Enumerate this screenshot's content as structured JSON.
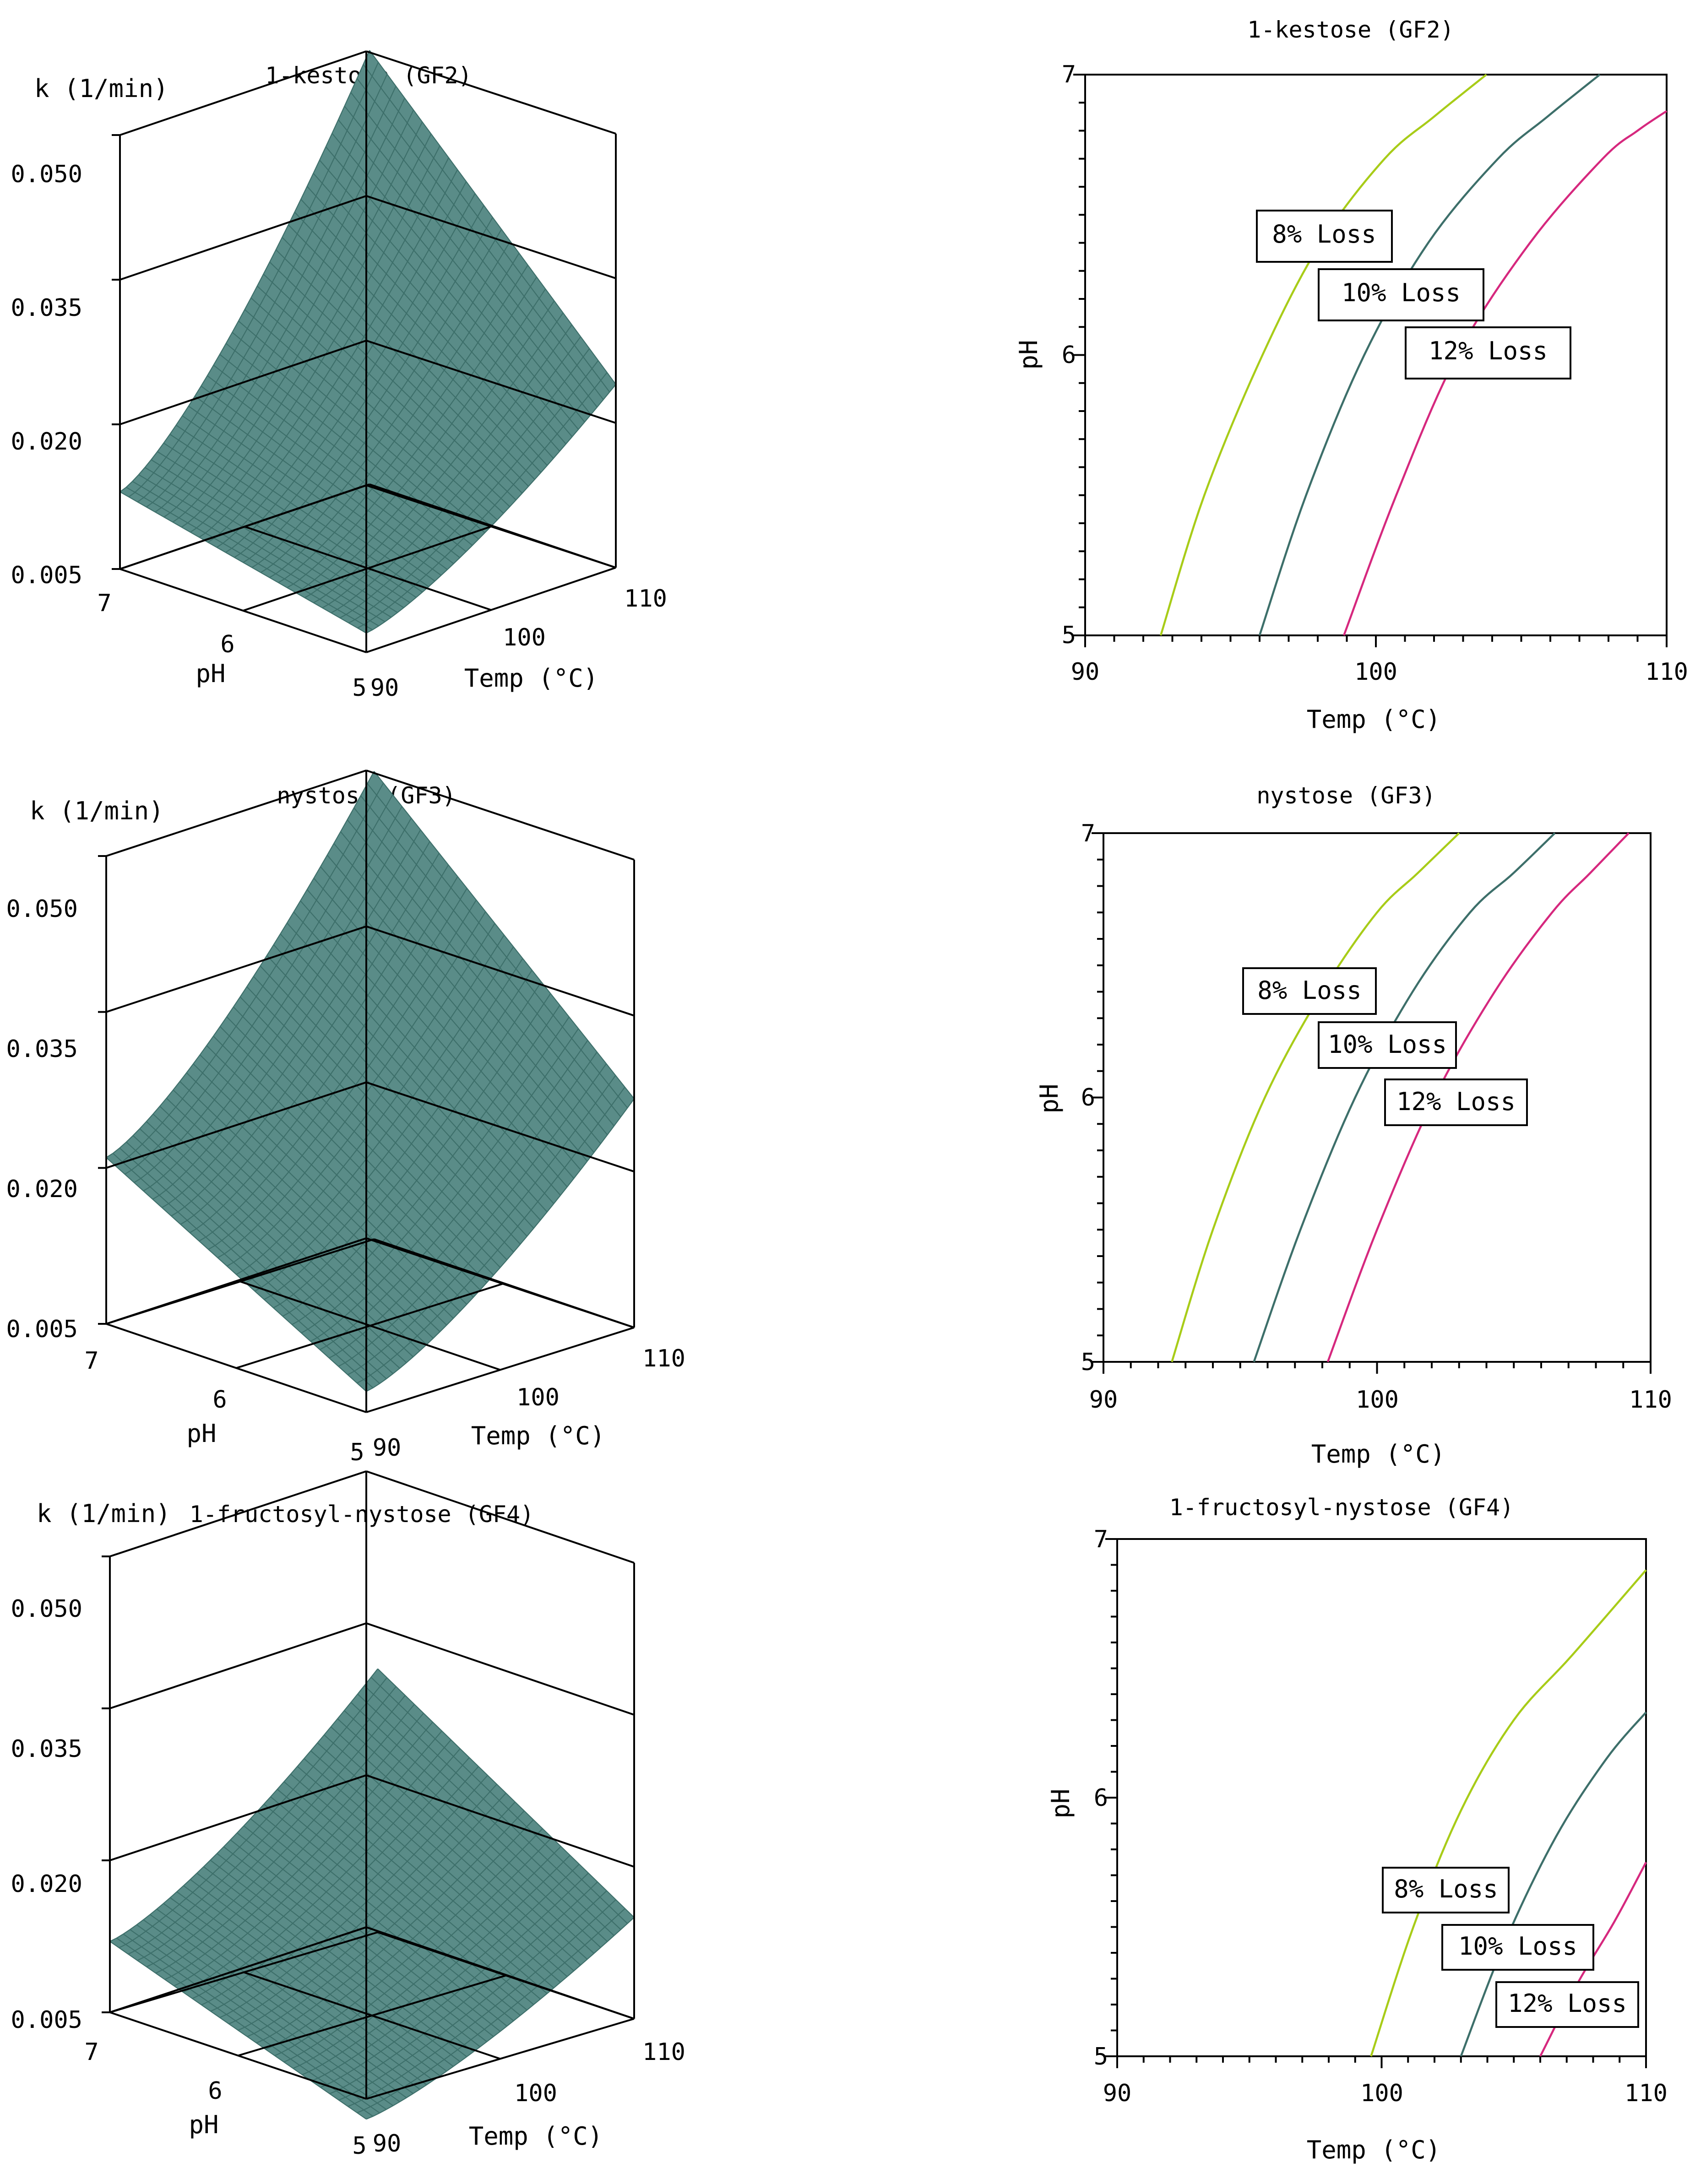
{
  "chart_data": [
    {
      "type": "surface3d",
      "title": "1-kestose (GF2)",
      "zlabel": "k (1/min)",
      "xlabel": "Temp (°C)",
      "ylabel": "pH",
      "z_ticks": [
        "0.005",
        "0.020",
        "0.035",
        "0.050"
      ],
      "temp_ticks": [
        "90",
        "100",
        "110"
      ],
      "ph_ticks": [
        "7",
        "6",
        "5"
      ],
      "zlim": [
        0.005,
        0.05
      ],
      "xlim": [
        90,
        110
      ],
      "ylim": [
        5,
        7
      ],
      "corners": {
        "t90_ph5": 0.007,
        "t90_ph7": 0.013,
        "t110_ph5": 0.024,
        "t110_ph7": 0.05
      },
      "series_color": "#3d6f6a"
    },
    {
      "type": "contour",
      "title": "1-kestose (GF2)",
      "xlabel": "Temp (°C)",
      "ylabel": "pH",
      "x_ticks": [
        "90",
        "100",
        "110"
      ],
      "y_ticks": [
        "5",
        "6",
        "7"
      ],
      "xlim": [
        90,
        110
      ],
      "ylim": [
        5,
        7
      ],
      "series": [
        {
          "name": "8% Loss",
          "color": "#a8cc18",
          "x": [
            92.6,
            94.1,
            96.1,
            98.1,
            100.3,
            102.0,
            103.8
          ],
          "y": [
            5.0,
            5.5,
            6.0,
            6.4,
            6.7,
            6.85,
            7.0
          ]
        },
        {
          "name": "10% Loss",
          "color": "#3d6f6a",
          "x": [
            96.0,
            97.6,
            99.6,
            101.8,
            104.2,
            105.9,
            107.7
          ],
          "y": [
            5.0,
            5.5,
            6.0,
            6.4,
            6.7,
            6.85,
            7.0
          ]
        },
        {
          "name": "12% Loss",
          "color": "#d6287e",
          "x": [
            98.9,
            100.7,
            102.8,
            105.3,
            107.8,
            109.0,
            110.0
          ],
          "y": [
            5.0,
            5.5,
            6.0,
            6.4,
            6.7,
            6.8,
            6.87
          ]
        }
      ]
    },
    {
      "type": "surface3d",
      "title": "nystose (GF3)",
      "zlabel": "k (1/min)",
      "xlabel": "Temp (°C)",
      "ylabel": "pH",
      "z_ticks": [
        "0.005",
        "0.020",
        "0.035",
        "0.050"
      ],
      "temp_ticks": [
        "90",
        "100",
        "110"
      ],
      "ph_ticks": [
        "7",
        "6",
        "5"
      ],
      "zlim": [
        0.005,
        0.05
      ],
      "xlim": [
        90,
        110
      ],
      "ylim": [
        5,
        7
      ],
      "corners": {
        "t90_ph5": 0.007,
        "t90_ph7": 0.021,
        "t110_ph5": 0.027,
        "t110_ph7": 0.05
      },
      "series_color": "#3d6f6a"
    },
    {
      "type": "contour",
      "title": "nystose (GF3)",
      "xlabel": "Temp (°C)",
      "ylabel": "pH",
      "x_ticks": [
        "90",
        "100",
        "110"
      ],
      "y_ticks": [
        "5",
        "6",
        "7"
      ],
      "xlim": [
        90,
        110
      ],
      "ylim": [
        5,
        7
      ],
      "series": [
        {
          "name": "8% Loss",
          "color": "#a8cc18",
          "x": [
            92.5,
            94.0,
            95.9,
            98.0,
            100.0,
            101.5,
            103.0
          ],
          "y": [
            5.0,
            5.5,
            6.0,
            6.4,
            6.7,
            6.85,
            7.0
          ]
        },
        {
          "name": "10% Loss",
          "color": "#3d6f6a",
          "x": [
            95.5,
            97.2,
            99.2,
            101.3,
            103.4,
            105.0,
            106.5
          ],
          "y": [
            5.0,
            5.5,
            6.0,
            6.4,
            6.7,
            6.85,
            7.0
          ]
        },
        {
          "name": "12% Loss",
          "color": "#d6287e",
          "x": [
            98.2,
            100.0,
            102.1,
            104.3,
            106.4,
            107.8,
            109.2
          ],
          "y": [
            5.0,
            5.5,
            6.0,
            6.4,
            6.7,
            6.85,
            7.0
          ]
        }
      ]
    },
    {
      "type": "surface3d",
      "title": "1-fructosyl-nystose (GF4)",
      "zlabel": "k (1/min)",
      "xlabel": "Temp (°C)",
      "ylabel": "pH",
      "z_ticks": [
        "0.005",
        "0.020",
        "0.035",
        "0.050"
      ],
      "temp_ticks": [
        "90",
        "100",
        "110"
      ],
      "ph_ticks": [
        "7",
        "6",
        "5"
      ],
      "zlim": [
        0.005,
        0.05
      ],
      "xlim": [
        90,
        110
      ],
      "ylim": [
        5,
        7
      ],
      "corners": {
        "t90_ph5": 0.003,
        "t90_ph7": 0.012,
        "t110_ph5": 0.015,
        "t110_ph7": 0.031
      },
      "series_color": "#3d6f6a"
    },
    {
      "type": "contour",
      "title": "1-fructosyl-nystose (GF4)",
      "xlabel": "Temp (°C)",
      "ylabel": "pH",
      "x_ticks": [
        "90",
        "100",
        "110"
      ],
      "y_ticks": [
        "5",
        "6",
        "7"
      ],
      "xlim": [
        90,
        110
      ],
      "ylim": [
        5,
        7
      ],
      "series": [
        {
          "name": "8% Loss",
          "color": "#a8cc18",
          "x": [
            99.6,
            101.2,
            103.0,
            105.0,
            107.2,
            110.0
          ],
          "y": [
            5.0,
            5.5,
            5.95,
            6.3,
            6.55,
            6.88
          ]
        },
        {
          "name": "10% Loss",
          "color": "#3d6f6a",
          "x": [
            103.0,
            104.7,
            106.6,
            108.5,
            110.0
          ],
          "y": [
            5.0,
            5.45,
            5.85,
            6.15,
            6.33
          ]
        },
        {
          "name": "12% Loss",
          "color": "#d6287e",
          "x": [
            106.0,
            107.4,
            108.8,
            110.0
          ],
          "y": [
            5.0,
            5.28,
            5.52,
            5.75
          ]
        }
      ]
    }
  ]
}
